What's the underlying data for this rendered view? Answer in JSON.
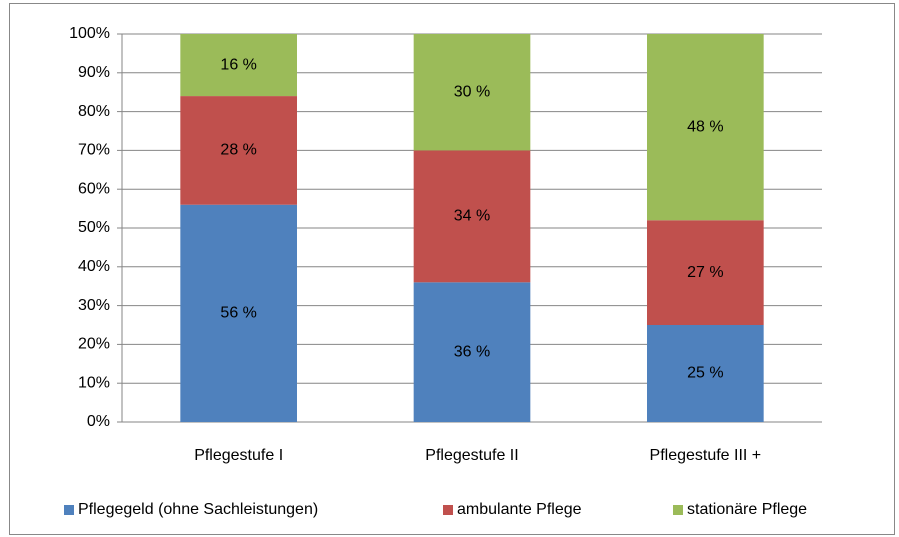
{
  "chart_data": {
    "type": "stacked_bar",
    "categories": [
      "Pflegestufe I",
      "Pflegestufe II",
      "Pflegestufe III +"
    ],
    "series": [
      {
        "name": "Pflegegeld (ohne Sachleistungen)",
        "color": "#4f81bd",
        "values": [
          56,
          36,
          25
        ],
        "value_labels": [
          "56 %",
          "36 %",
          "25 %"
        ]
      },
      {
        "name": "ambulante Pflege",
        "color": "#c0504d",
        "values": [
          28,
          34,
          27
        ],
        "value_labels": [
          "28 %",
          "34 %",
          "27 %"
        ]
      },
      {
        "name": "stationäre Pflege",
        "color": "#9bbb59",
        "values": [
          16,
          30,
          48
        ],
        "value_labels": [
          "16 %",
          "30 %",
          "48 %"
        ]
      }
    ],
    "ylim": [
      0,
      100
    ],
    "yticks": [
      {
        "value": 0,
        "label": "0%"
      },
      {
        "value": 10,
        "label": "10%"
      },
      {
        "value": 20,
        "label": "20%"
      },
      {
        "value": 30,
        "label": "30%"
      },
      {
        "value": 40,
        "label": "40%"
      },
      {
        "value": 50,
        "label": "50%"
      },
      {
        "value": 60,
        "label": "60%"
      },
      {
        "value": 70,
        "label": "70%"
      },
      {
        "value": 80,
        "label": "80%"
      },
      {
        "value": 90,
        "label": "90%"
      },
      {
        "value": 100,
        "label": "100%"
      }
    ],
    "grid": true,
    "legend": "bottom"
  }
}
